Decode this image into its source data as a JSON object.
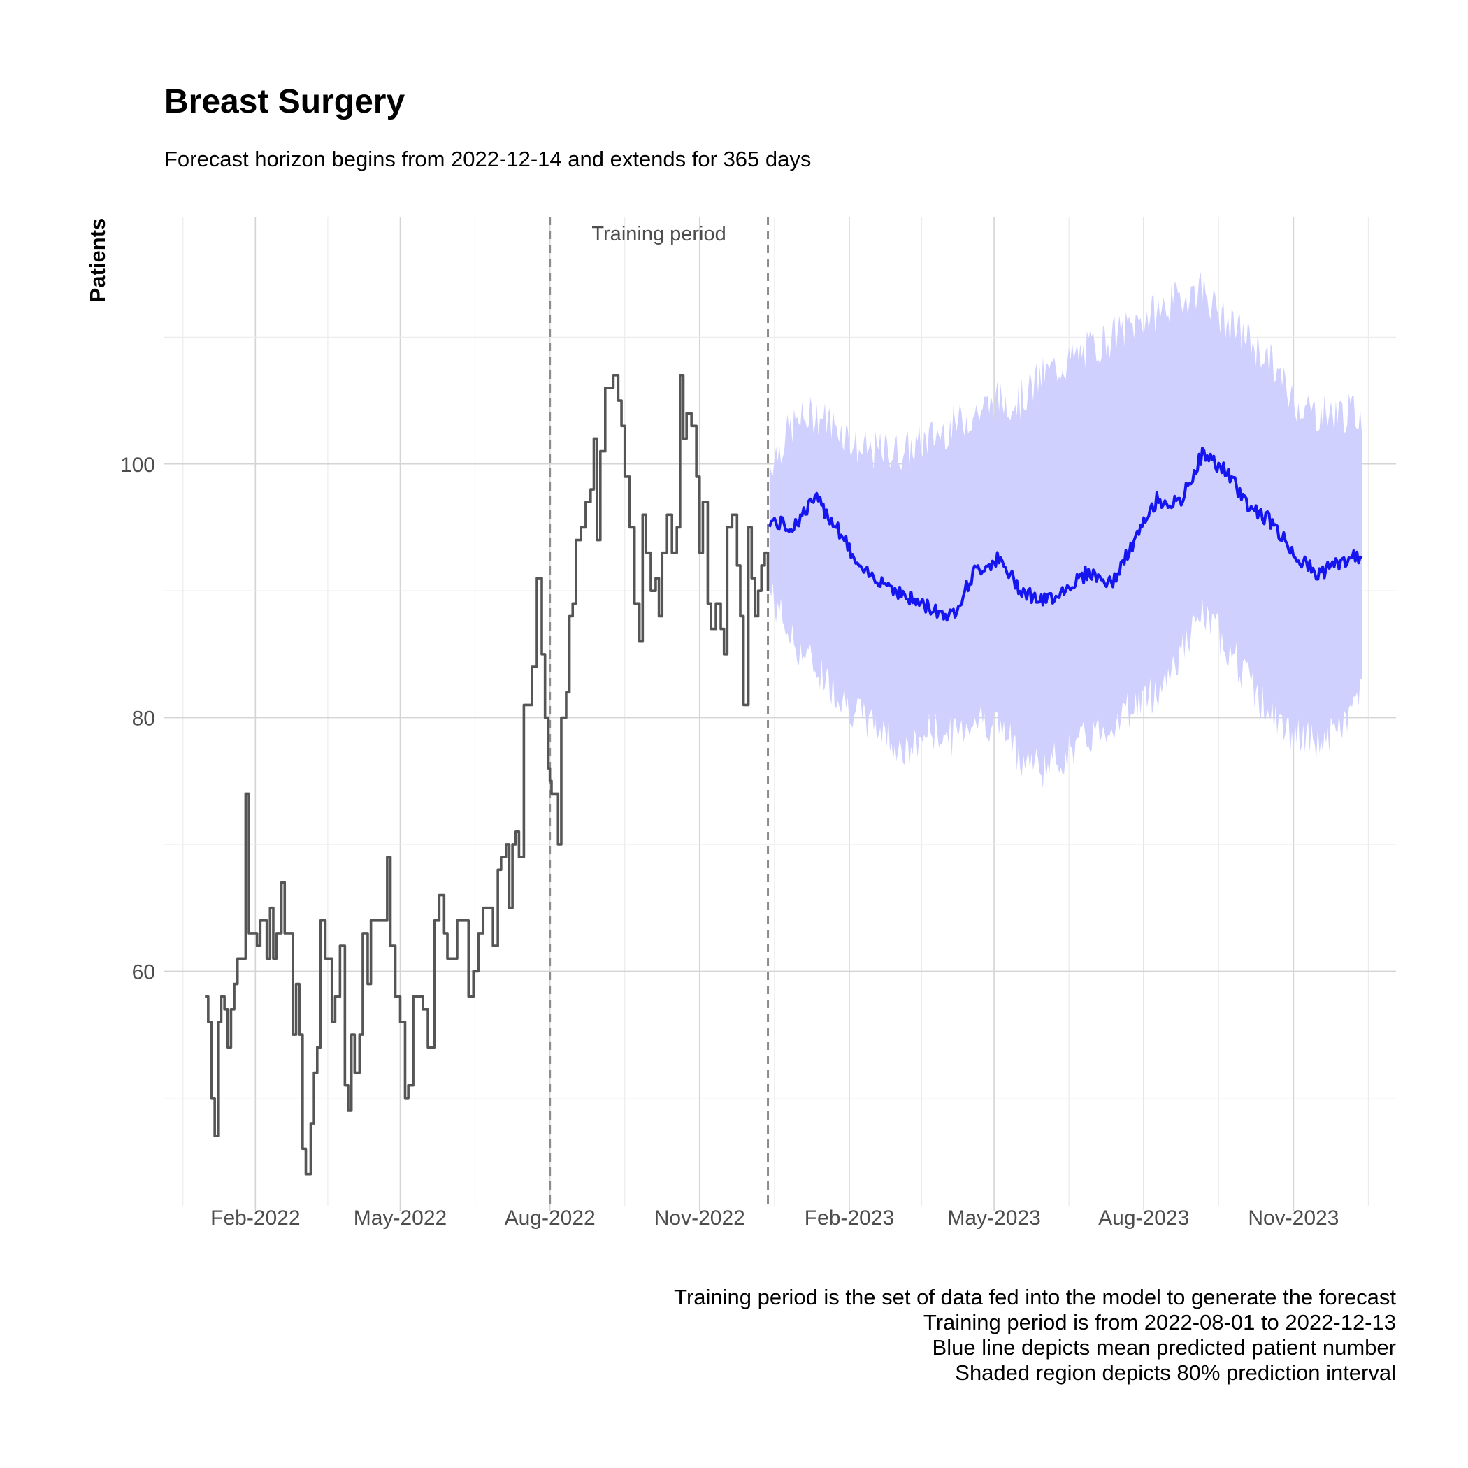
{
  "chart_data": {
    "type": "line",
    "title": "Breast Surgery",
    "subtitle": "Forecast horizon begins from 2022-12-14 and extends for 365 days",
    "xlabel": "",
    "ylabel": "Patients",
    "xlim": [
      "2021-12-07",
      "2024-01-03"
    ],
    "ylim": [
      41.5,
      119.5
    ],
    "y_ticks": [
      60,
      80,
      100
    ],
    "x_ticks": [
      {
        "date": "2022-02-01",
        "label": "Feb-2022"
      },
      {
        "date": "2022-05-01",
        "label": "May-2022"
      },
      {
        "date": "2022-08-01",
        "label": "Aug-2022"
      },
      {
        "date": "2022-11-01",
        "label": "Nov-2022"
      },
      {
        "date": "2023-02-01",
        "label": "Feb-2023"
      },
      {
        "date": "2023-05-01",
        "label": "May-2023"
      },
      {
        "date": "2023-08-01",
        "label": "Aug-2023"
      },
      {
        "date": "2023-11-01",
        "label": "Nov-2023"
      }
    ],
    "grid": true,
    "annotation": {
      "label": "Training period",
      "start": "2022-08-01",
      "end": "2022-12-13"
    },
    "colors": {
      "observed": "#555555",
      "forecast": "#1515f0",
      "interval": "#d0d0ff",
      "training_lines": "#8c8c8c"
    },
    "observed": {
      "dates": [
        "2022-01-01",
        "2022-01-03",
        "2022-01-05",
        "2022-01-07",
        "2022-01-09",
        "2022-01-11",
        "2022-01-13",
        "2022-01-15",
        "2022-01-17",
        "2022-01-19",
        "2022-01-21",
        "2022-01-24",
        "2022-01-26",
        "2022-01-28",
        "2022-01-31",
        "2022-02-02",
        "2022-02-04",
        "2022-02-06",
        "2022-02-08",
        "2022-02-10",
        "2022-02-12",
        "2022-02-14",
        "2022-02-17",
        "2022-02-19",
        "2022-02-22",
        "2022-02-24",
        "2022-02-26",
        "2022-02-28",
        "2022-03-02",
        "2022-03-04",
        "2022-03-07",
        "2022-03-09",
        "2022-03-11",
        "2022-03-13",
        "2022-03-16",
        "2022-03-18",
        "2022-03-20",
        "2022-03-22",
        "2022-03-25",
        "2022-03-28",
        "2022-03-30",
        "2022-04-01",
        "2022-04-03",
        "2022-04-06",
        "2022-04-08",
        "2022-04-11",
        "2022-04-13",
        "2022-04-15",
        "2022-04-18",
        "2022-04-20",
        "2022-04-23",
        "2022-04-25",
        "2022-04-28",
        "2022-05-01",
        "2022-05-04",
        "2022-05-06",
        "2022-05-09",
        "2022-05-12",
        "2022-05-15",
        "2022-05-18",
        "2022-05-20",
        "2022-05-22",
        "2022-05-25",
        "2022-05-28",
        "2022-05-30",
        "2022-06-02",
        "2022-06-05",
        "2022-06-08",
        "2022-06-10",
        "2022-06-12",
        "2022-06-15",
        "2022-06-18",
        "2022-06-21",
        "2022-06-24",
        "2022-06-27",
        "2022-06-30",
        "2022-07-02",
        "2022-07-05",
        "2022-07-07",
        "2022-07-09",
        "2022-07-11",
        "2022-07-13",
        "2022-07-16",
        "2022-07-18",
        "2022-07-21",
        "2022-07-24",
        "2022-07-27",
        "2022-07-29",
        "2022-07-31",
        "2022-08-01",
        "2022-08-02",
        "2022-08-04",
        "2022-08-06",
        "2022-08-08",
        "2022-08-11",
        "2022-08-13",
        "2022-08-15",
        "2022-08-17",
        "2022-08-20",
        "2022-08-23",
        "2022-08-26",
        "2022-08-28",
        "2022-08-30",
        "2022-09-01",
        "2022-09-04",
        "2022-09-07",
        "2022-09-09",
        "2022-09-12",
        "2022-09-14",
        "2022-09-16",
        "2022-09-19",
        "2022-09-22",
        "2022-09-25",
        "2022-09-27",
        "2022-09-29",
        "2022-10-02",
        "2022-10-05",
        "2022-10-07",
        "2022-10-09",
        "2022-10-12",
        "2022-10-15",
        "2022-10-18",
        "2022-10-20",
        "2022-10-22",
        "2022-10-24",
        "2022-10-27",
        "2022-10-30",
        "2022-11-01",
        "2022-11-03",
        "2022-11-06",
        "2022-11-08",
        "2022-11-11",
        "2022-11-14",
        "2022-11-16",
        "2022-11-18",
        "2022-11-21",
        "2022-11-24",
        "2022-11-26",
        "2022-11-28",
        "2022-12-01",
        "2022-12-03",
        "2022-12-05",
        "2022-12-07",
        "2022-12-09",
        "2022-12-11",
        "2022-12-13"
      ],
      "values": [
        58,
        56,
        50,
        47,
        56,
        58,
        57,
        54,
        57,
        59,
        61,
        61,
        74,
        63,
        63,
        62,
        64,
        64,
        61,
        65,
        61,
        63,
        67,
        63,
        63,
        55,
        59,
        55,
        46,
        44,
        48,
        52,
        54,
        64,
        61,
        61,
        56,
        58,
        62,
        51,
        49,
        55,
        52,
        55,
        63,
        59,
        64,
        64,
        64,
        64,
        69,
        62,
        58,
        56,
        50,
        51,
        58,
        58,
        57,
        54,
        54,
        64,
        66,
        63,
        61,
        61,
        64,
        64,
        64,
        58,
        60,
        63,
        65,
        65,
        62,
        68,
        69,
        70,
        65,
        70,
        71,
        69,
        81,
        81,
        84,
        91,
        85,
        80,
        76,
        75,
        74,
        74,
        70,
        80,
        82,
        88,
        89,
        94,
        95,
        97,
        98,
        102,
        94,
        101,
        106,
        106,
        107,
        105,
        103,
        99,
        95,
        89,
        86,
        96,
        93,
        90,
        91,
        88,
        93,
        96,
        93,
        95,
        107,
        102,
        104,
        103,
        99,
        93,
        97,
        89,
        87,
        89,
        87,
        85,
        95,
        96,
        92,
        88,
        81,
        95,
        91,
        88,
        90,
        92,
        93,
        90
      ]
    },
    "forecast": {
      "dates": [
        "2022-12-14",
        "2022-12-28",
        "2023-01-11",
        "2023-01-25",
        "2023-02-08",
        "2023-02-22",
        "2023-03-08",
        "2023-03-22",
        "2023-04-05",
        "2023-04-19",
        "2023-05-03",
        "2023-05-17",
        "2023-05-31",
        "2023-06-14",
        "2023-06-28",
        "2023-07-12",
        "2023-07-26",
        "2023-08-09",
        "2023-08-23",
        "2023-09-06",
        "2023-09-20",
        "2023-10-04",
        "2023-10-18",
        "2023-11-01",
        "2023-11-15",
        "2023-11-29",
        "2023-12-13"
      ],
      "mean": [
        95.5,
        95,
        97.3,
        95,
        91.5,
        90.8,
        89.5,
        88.7,
        88,
        91.5,
        92.5,
        90.2,
        89.1,
        90.2,
        91.5,
        90.5,
        93.8,
        97.2,
        96.8,
        100.8,
        99.5,
        96.8,
        95.5,
        93,
        91.3,
        92.2,
        92.8
      ],
      "lower": [
        90,
        86,
        84,
        82,
        80,
        79,
        77,
        79,
        78.5,
        80,
        79.5,
        77,
        76,
        77,
        78.5,
        79.5,
        81,
        82,
        85,
        88,
        86,
        83,
        80,
        78.5,
        78,
        79,
        82
      ],
      "upper": [
        100,
        103,
        104,
        103,
        101,
        101,
        101,
        102,
        103,
        104,
        105,
        105,
        107,
        108,
        109,
        110,
        111,
        112,
        113,
        114,
        111,
        110,
        108,
        105,
        104,
        104,
        104
      ]
    }
  },
  "caption": [
    "Training period is the set of data fed into the model to generate the forecast",
    "Training period is from 2022-08-01 to 2022-12-13",
    "Blue line depicts mean predicted patient number",
    "Shaded region depicts 80% prediction interval"
  ]
}
